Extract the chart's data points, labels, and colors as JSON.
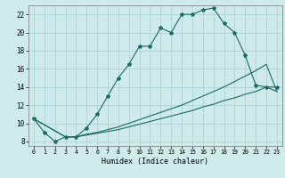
{
  "xlabel": "Humidex (Indice chaleur)",
  "bg_color": "#ceeaea",
  "line_color": "#1a6b60",
  "grid_color": "#aed4d4",
  "xlim": [
    -0.5,
    23.5
  ],
  "ylim": [
    7.5,
    23.0
  ],
  "xticks": [
    0,
    1,
    2,
    3,
    4,
    5,
    6,
    7,
    8,
    9,
    10,
    11,
    12,
    13,
    14,
    15,
    16,
    17,
    18,
    19,
    20,
    21,
    22,
    23
  ],
  "yticks": [
    8,
    10,
    12,
    14,
    16,
    18,
    20,
    22
  ],
  "curve1_x": [
    0,
    1,
    2,
    3,
    4,
    5,
    6,
    7,
    8,
    9,
    10,
    11,
    12,
    13,
    14,
    15,
    16,
    17,
    18,
    19,
    20,
    21,
    22,
    23
  ],
  "curve1_y": [
    10.5,
    9.0,
    8.0,
    8.5,
    8.5,
    9.5,
    11.0,
    13.0,
    15.0,
    16.5,
    18.5,
    18.5,
    20.5,
    20.0,
    22.0,
    22.0,
    22.5,
    22.7,
    21.0,
    20.0,
    17.5,
    14.2,
    14.0,
    14.0
  ],
  "curve2_x": [
    0,
    3,
    4,
    5,
    6,
    7,
    8,
    9,
    10,
    11,
    12,
    13,
    14,
    15,
    16,
    17,
    18,
    19,
    20,
    21,
    22,
    23
  ],
  "curve2_y": [
    10.5,
    8.5,
    8.5,
    8.8,
    9.0,
    9.3,
    9.6,
    10.0,
    10.4,
    10.8,
    11.2,
    11.6,
    12.0,
    12.5,
    13.0,
    13.5,
    14.0,
    14.6,
    15.2,
    15.8,
    16.5,
    13.5
  ],
  "curve3_x": [
    0,
    3,
    4,
    5,
    6,
    7,
    8,
    9,
    10,
    11,
    12,
    13,
    14,
    15,
    16,
    17,
    18,
    19,
    20,
    21,
    22,
    23
  ],
  "curve3_y": [
    10.5,
    8.5,
    8.5,
    8.7,
    8.9,
    9.1,
    9.3,
    9.6,
    9.9,
    10.2,
    10.5,
    10.8,
    11.1,
    11.4,
    11.8,
    12.1,
    12.5,
    12.8,
    13.2,
    13.5,
    14.0,
    13.5
  ]
}
